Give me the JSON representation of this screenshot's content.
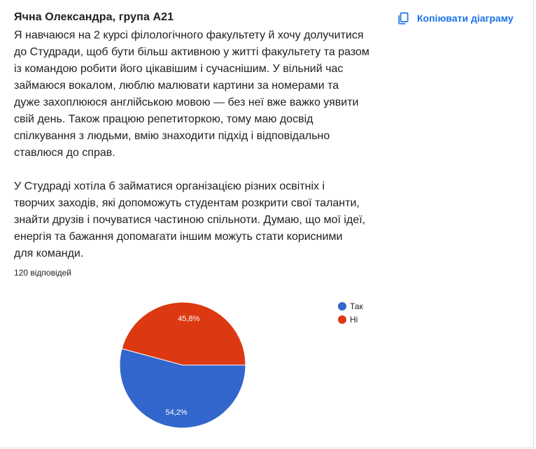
{
  "header": {
    "title": "Ячна Олександра, група А21",
    "copy_label": "Копіювати діаграму"
  },
  "question": {
    "text": "Я навчаюся на 2 курсі філологічного факультету й хочу долучитися\nдо Студради, щоб бути більш активною у житті факультету та разом\nіз командою робити його цікавішим і сучаснішим. У вільний час\nзаймаюся вокалом, люблю малювати картини за номерами та\nдуже захоплююся англійською мовою — без неї вже важко уявити\nсвій день. Також працюю репетиторкою, тому маю досвід\nспілкування з людьми, вмію знаходити підхід і відповідально\nставлюся до справ.\n\nУ Студраді хотіла б займатися організацією різних освітніх і\nтворчих заходів, які допоможуть студентам розкрити свої таланти,\nзнайти друзів і почуватися частиною спільноти. Думаю, що мої ідеї,\nенергія та бажання допомагати іншим можуть стати корисними\nдля команди.",
    "responses": "120 відповідей"
  },
  "chart_data": {
    "type": "pie",
    "slices": [
      {
        "label": "Так",
        "value": 54.2,
        "display": "54,2%",
        "color": "#3366cc"
      },
      {
        "label": "Ні",
        "value": 45.8,
        "display": "45,8%",
        "color": "#dc3912"
      }
    ],
    "legend_position": "right"
  }
}
